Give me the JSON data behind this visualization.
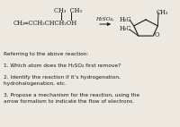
{
  "bg_color": "#ede8e0",
  "text_color": "#1a1a1a",
  "fs_r": 4.8,
  "fs_q": 4.2,
  "q0": "Referring to the above reaction:",
  "q1": "1. Which atom does the H₂SO₄ first remove?",
  "q2": "2. Identify the reaction if it’s hydrogenation,\nhydrohalogenation, etc.",
  "q3": "3. Propose a mechanism for the reaction, using the\narrow formalism to indicate the flow of electrons."
}
